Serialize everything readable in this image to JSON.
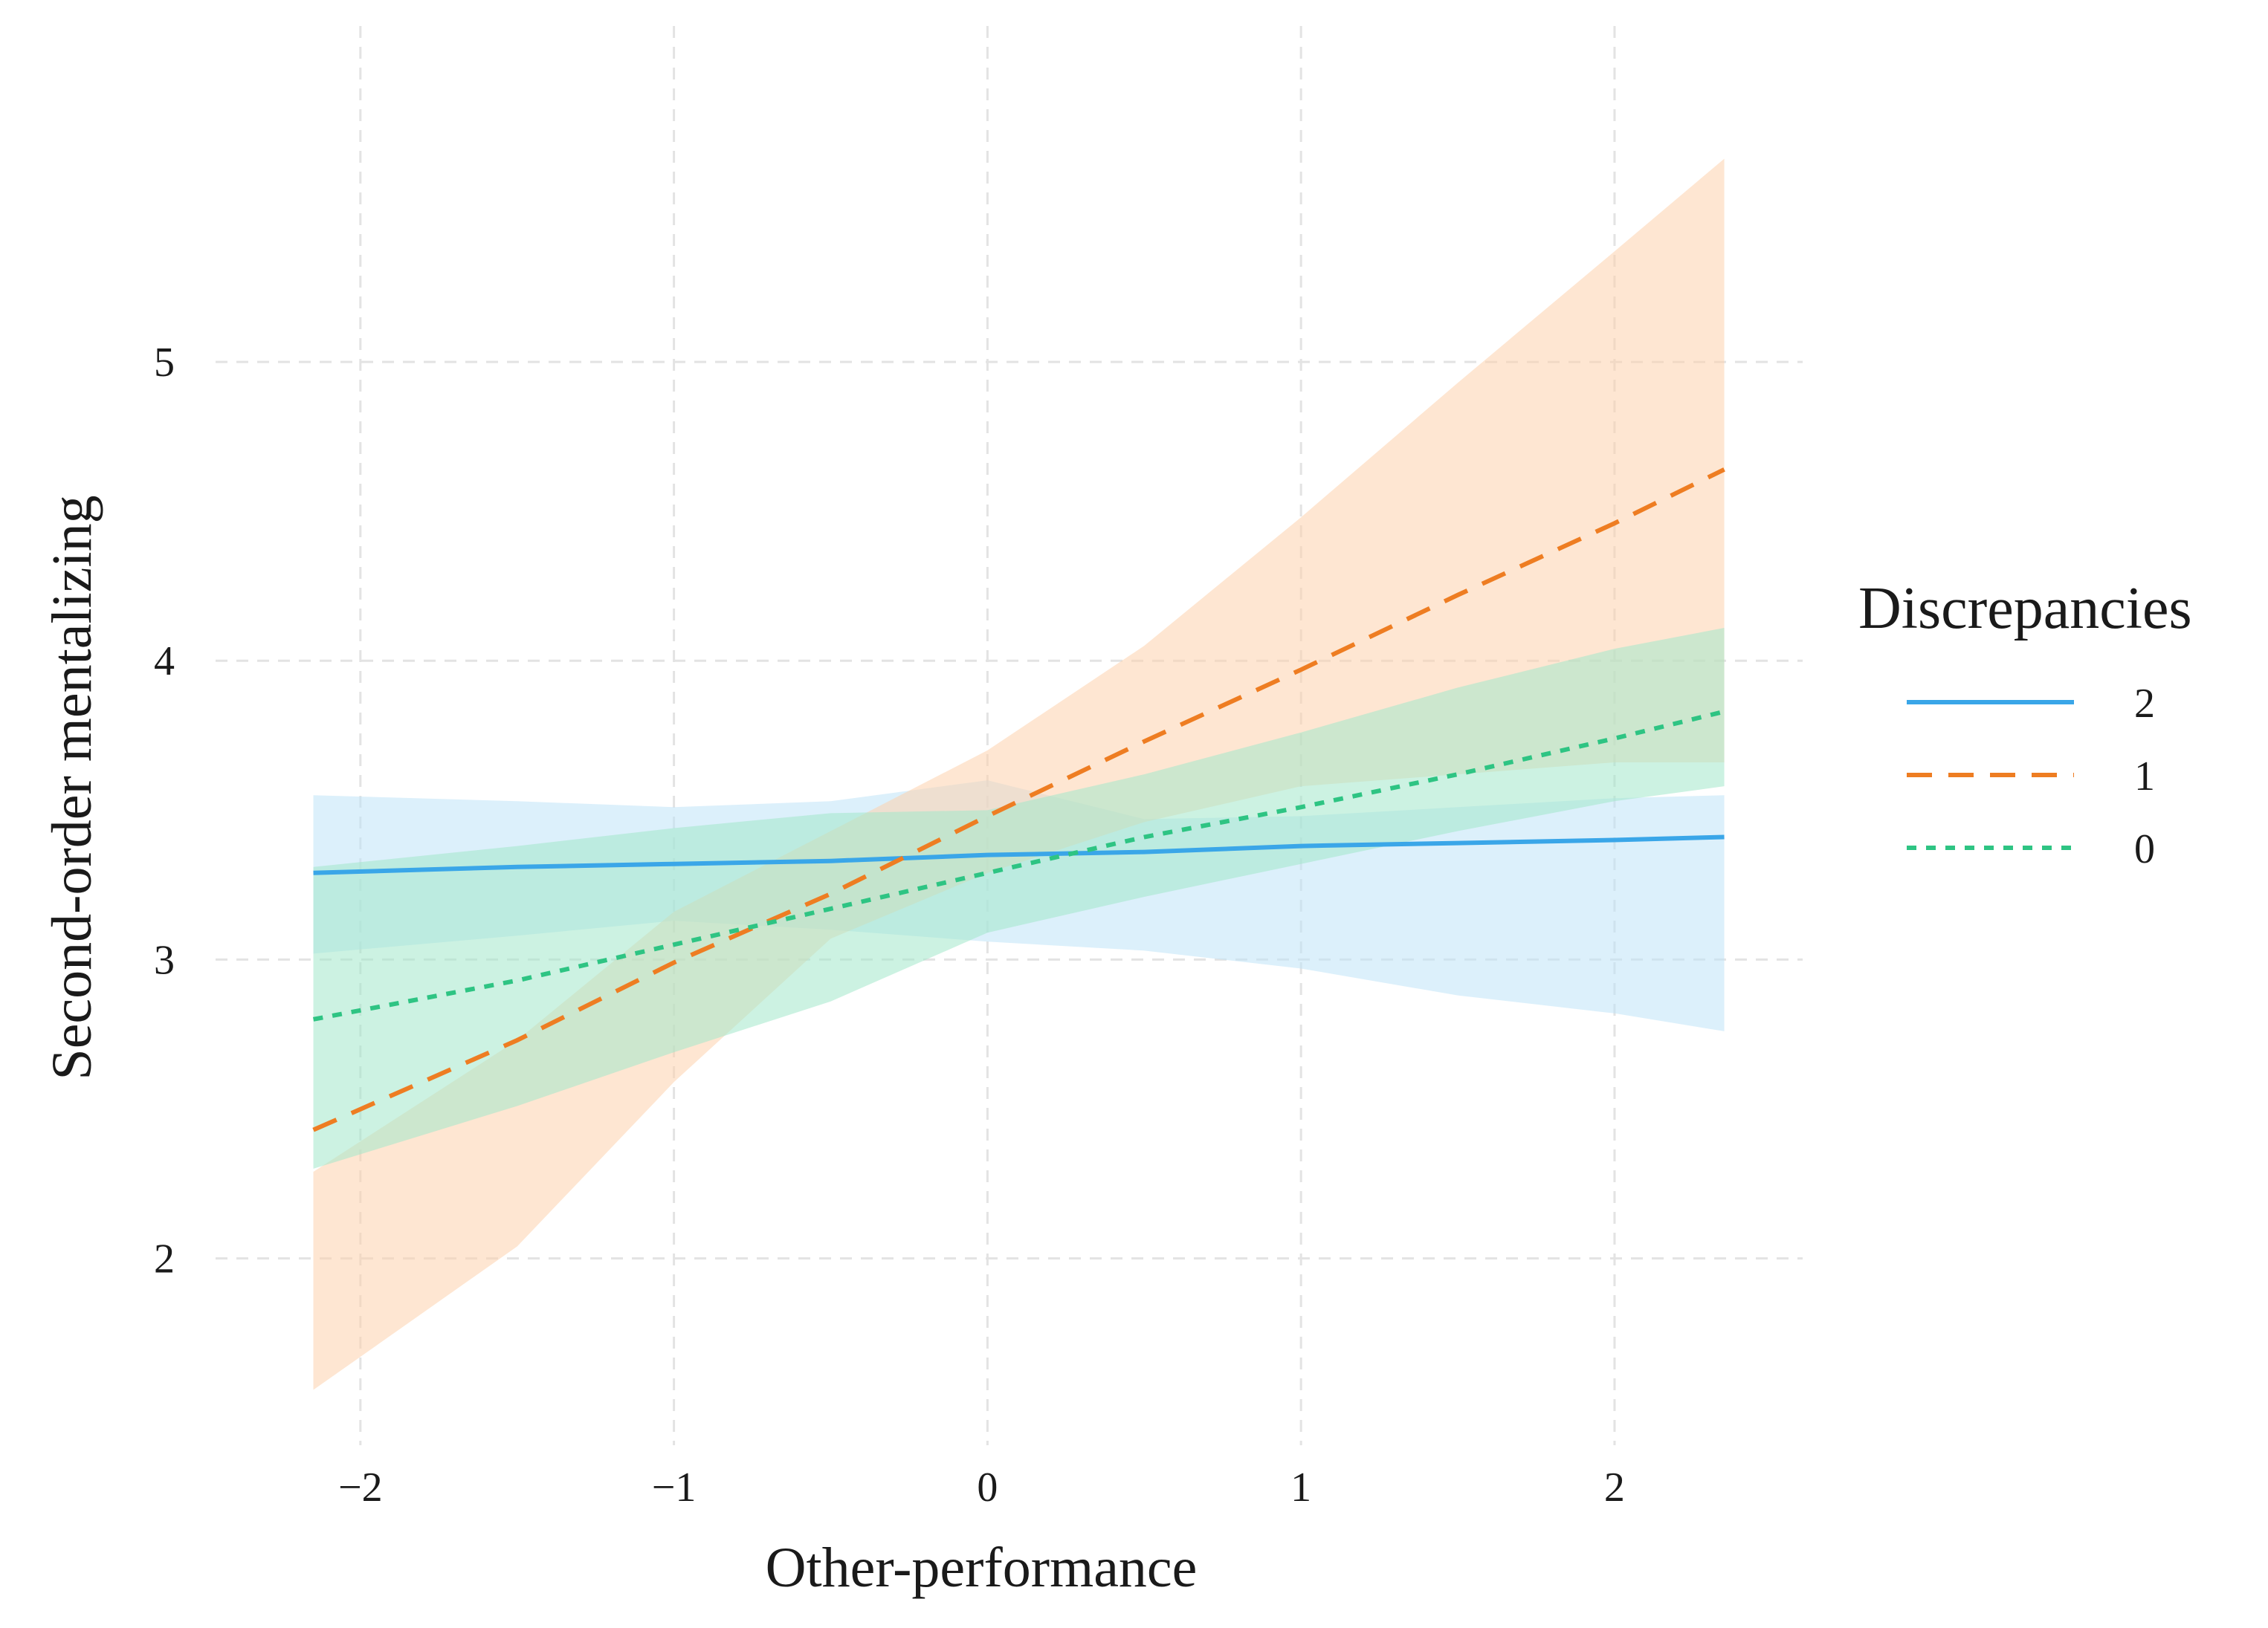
{
  "chart_data": {
    "type": "line",
    "title": "",
    "xlabel": "Other-performance",
    "ylabel": "Second-order mentalizing",
    "xlim": [
      -2.45,
      2.6
    ],
    "ylim": [
      1.35,
      5.95
    ],
    "x_ticks": [
      -2,
      -1,
      0,
      1,
      2
    ],
    "x_tick_labels": [
      "−2",
      "−1",
      "0",
      "1",
      "2"
    ],
    "y_ticks": [
      2,
      3,
      4,
      5
    ],
    "y_tick_labels": [
      "2",
      "3",
      "4",
      "5"
    ],
    "grid": true,
    "legend": {
      "title": "Discrepancies",
      "position": "right"
    },
    "series": [
      {
        "name": "2",
        "color": "#3aa6e8",
        "band_color": "#bfe3f8",
        "dash": "solid",
        "x": [
          -2.15,
          -1.5,
          -1.0,
          -0.5,
          0.0,
          0.5,
          1.0,
          1.5,
          2.0,
          2.35
        ],
        "y": [
          3.29,
          3.31,
          3.32,
          3.33,
          3.35,
          3.36,
          3.38,
          3.39,
          3.4,
          3.41
        ],
        "upper": [
          3.55,
          3.53,
          3.51,
          3.53,
          3.6,
          3.47,
          3.48,
          3.51,
          3.54,
          3.55
        ],
        "lower": [
          3.02,
          3.08,
          3.13,
          3.1,
          3.06,
          3.03,
          2.97,
          2.88,
          2.82,
          2.76
        ]
      },
      {
        "name": "1",
        "color": "#ee7d22",
        "band_color": "#fdd2ad",
        "dash": "dashed",
        "x": [
          -2.15,
          -1.5,
          -1.0,
          -0.5,
          0.0,
          0.5,
          1.0,
          1.5,
          2.0,
          2.35
        ],
        "y": [
          2.43,
          2.73,
          2.99,
          3.22,
          3.48,
          3.73,
          3.97,
          4.22,
          4.46,
          4.64
        ],
        "upper": [
          2.29,
          2.73,
          3.16,
          3.43,
          3.7,
          4.05,
          4.48,
          4.93,
          5.37,
          5.68
        ],
        "lower": [
          1.56,
          2.04,
          2.59,
          3.07,
          3.29,
          3.46,
          3.58,
          3.62,
          3.66,
          3.66
        ]
      },
      {
        "name": "0",
        "color": "#2ec483",
        "band_color": "#a3e8cb",
        "dash": "dotted",
        "x": [
          -2.15,
          -1.5,
          -1.0,
          -0.5,
          0.0,
          0.5,
          1.0,
          1.5,
          2.0,
          2.35
        ],
        "y": [
          2.8,
          2.93,
          3.05,
          3.17,
          3.29,
          3.41,
          3.51,
          3.62,
          3.74,
          3.83
        ],
        "upper": [
          3.31,
          3.38,
          3.44,
          3.49,
          3.5,
          3.62,
          3.76,
          3.91,
          4.04,
          4.11
        ],
        "lower": [
          2.3,
          2.51,
          2.69,
          2.86,
          3.09,
          3.21,
          3.32,
          3.43,
          3.53,
          3.58
        ]
      }
    ]
  }
}
